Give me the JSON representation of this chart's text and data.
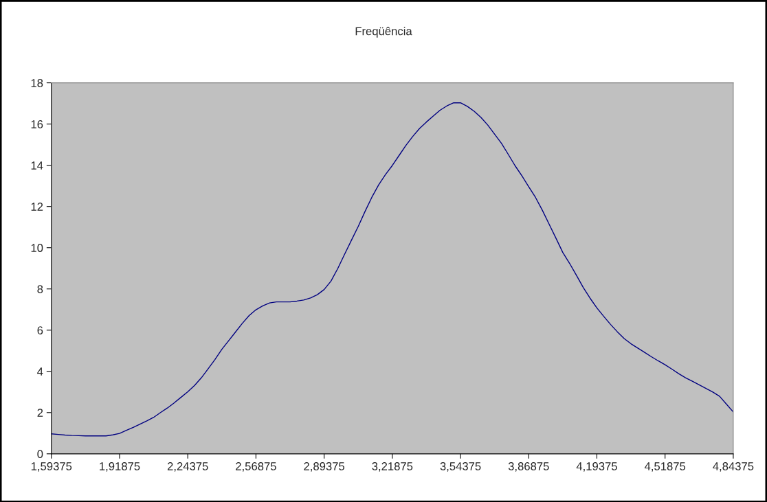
{
  "chart_data": {
    "type": "line",
    "title": "Freqüência",
    "categories": [
      "1,59375",
      null,
      null,
      null,
      null,
      null,
      null,
      null,
      null,
      null,
      "1,91875",
      null,
      null,
      null,
      null,
      null,
      null,
      null,
      null,
      null,
      "2,24375",
      null,
      null,
      null,
      null,
      null,
      null,
      null,
      null,
      null,
      "2,56875",
      null,
      null,
      null,
      null,
      null,
      null,
      null,
      null,
      null,
      "2,89375",
      null,
      null,
      null,
      null,
      null,
      null,
      null,
      null,
      null,
      "3,21875",
      null,
      null,
      null,
      null,
      null,
      null,
      null,
      null,
      null,
      "3,54375",
      null,
      null,
      null,
      null,
      null,
      null,
      null,
      null,
      null,
      "3,86875",
      null,
      null,
      null,
      null,
      null,
      null,
      null,
      null,
      null,
      "4,19375",
      null,
      null,
      null,
      null,
      null,
      null,
      null,
      null,
      null,
      "4,51875",
      null,
      null,
      null,
      null,
      null,
      null,
      null,
      null,
      null,
      "4,84375"
    ],
    "ylim": [
      0,
      18
    ],
    "yticks": [
      0,
      2,
      4,
      6,
      8,
      10,
      12,
      14,
      16,
      18
    ],
    "marker": "none",
    "line_style": "solid",
    "series": [
      {
        "color": "#000080",
        "values": [
          0.97,
          0.94,
          0.91,
          0.89,
          0.88,
          0.87,
          0.87,
          0.87,
          0.87,
          0.92,
          0.99,
          1.14,
          1.28,
          1.44,
          1.6,
          1.77,
          2.0,
          2.22,
          2.47,
          2.74,
          3.01,
          3.32,
          3.69,
          4.13,
          4.58,
          5.07,
          5.49,
          5.91,
          6.33,
          6.71,
          6.99,
          7.18,
          7.32,
          7.37,
          7.37,
          7.37,
          7.41,
          7.46,
          7.56,
          7.72,
          7.97,
          8.38,
          8.99,
          9.68,
          10.36,
          11.03,
          11.76,
          12.45,
          13.05,
          13.55,
          13.99,
          14.48,
          14.97,
          15.4,
          15.79,
          16.1,
          16.39,
          16.67,
          16.88,
          17.03,
          17.03,
          16.86,
          16.62,
          16.32,
          15.95,
          15.51,
          15.07,
          14.53,
          13.98,
          13.49,
          12.96,
          12.44,
          11.82,
          11.14,
          10.46,
          9.77,
          9.24,
          8.66,
          8.07,
          7.55,
          7.08,
          6.67,
          6.28,
          5.92,
          5.59,
          5.34,
          5.13,
          4.92,
          4.71,
          4.51,
          4.32,
          4.11,
          3.89,
          3.69,
          3.52,
          3.35,
          3.17,
          3.0,
          2.79,
          2.41,
          2.03
        ]
      }
    ]
  }
}
